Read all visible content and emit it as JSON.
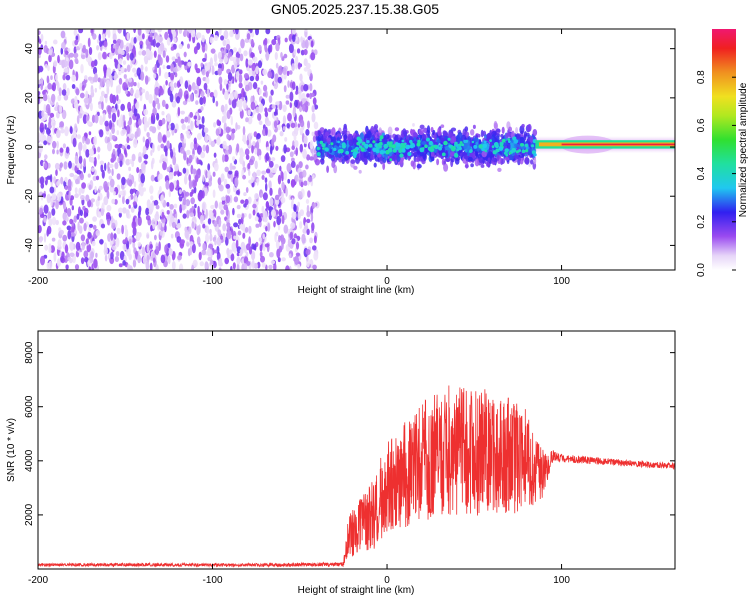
{
  "title": "GN05.2025.237.15.38.G05",
  "chart_data": [
    {
      "type": "heatmap",
      "xlabel": "Height of straight line (km)",
      "ylabel": "Frequency (Hz)",
      "xlim": [
        -200,
        165
      ],
      "ylim": [
        -50,
        48
      ],
      "x_ticks": [
        -200,
        -100,
        0,
        100
      ],
      "y_ticks": [
        -40,
        -20,
        0,
        20,
        40
      ],
      "colorbar": {
        "label": "Normalized spectral amplitude",
        "range": [
          0.0,
          1.0
        ],
        "ticks": [
          0.0,
          0.2,
          0.4,
          0.6,
          0.8
        ],
        "colormap": "rainbow (violet to red)"
      },
      "regions": [
        {
          "x_range": [
            -200,
            -40
          ],
          "y_range": [
            -50,
            48
          ],
          "description": "noise",
          "amplitude": 0.1
        },
        {
          "x_range": [
            -40,
            85
          ],
          "y_range": [
            -10,
            10
          ],
          "description": "broadband signal",
          "amplitude": 0.35
        },
        {
          "x_range": [
            85,
            165
          ],
          "y_range": [
            0,
            3
          ],
          "description": "narrow carrier line",
          "amplitude": 0.9
        }
      ],
      "grid": false
    },
    {
      "type": "line",
      "xlabel": "Height of straight line (km)",
      "ylabel": "SNR (10 * v/v)",
      "xlim": [
        -200,
        165
      ],
      "ylim": [
        0,
        8800
      ],
      "x_ticks": [
        -200,
        -100,
        0,
        100
      ],
      "y_ticks": [
        2000,
        4000,
        6000,
        8000
      ],
      "series": [
        {
          "color": "#ee3030",
          "x": [
            -200,
            -150,
            -100,
            -60,
            -25,
            -22,
            -10,
            0,
            10,
            20,
            30,
            40,
            50,
            60,
            70,
            80,
            90,
            95,
            100,
            120,
            140,
            165
          ],
          "y": [
            150,
            160,
            150,
            150,
            180,
            1200,
            1800,
            3000,
            3500,
            4000,
            4200,
            4500,
            4300,
            4400,
            4200,
            4000,
            3500,
            4200,
            4100,
            4000,
            3900,
            3800
          ],
          "y_spread": [
            60,
            60,
            60,
            60,
            80,
            800,
            1300,
            1700,
            2000,
            2200,
            2400,
            2500,
            2400,
            2300,
            2200,
            2000,
            800,
            200,
            150,
            130,
            120,
            110
          ]
        }
      ],
      "grid": false
    }
  ]
}
